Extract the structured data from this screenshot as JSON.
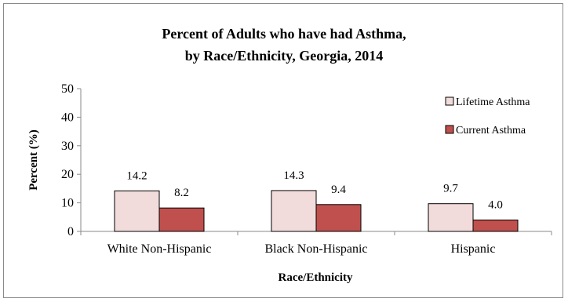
{
  "chart_data": {
    "type": "bar",
    "title_line1": "Percent of Adults who have had Asthma,",
    "title_line2": "by Race/Ethnicity, Georgia, 2014",
    "xlabel": "Race/Ethnicity",
    "ylabel": "Percent (%)",
    "ylim": [
      0,
      50
    ],
    "yticks": [
      0,
      10,
      20,
      30,
      40,
      50
    ],
    "categories": [
      "White Non-Hispanic",
      "Black Non-Hispanic",
      "Hispanic"
    ],
    "series": [
      {
        "name": "Lifetime Asthma",
        "values": [
          14.2,
          14.3,
          9.7
        ],
        "labels": [
          "14.2",
          "14.3",
          "9.7"
        ],
        "color": "#f2dcdb"
      },
      {
        "name": "Current Asthma",
        "values": [
          8.2,
          9.4,
          4.0
        ],
        "labels": [
          "8.2",
          "9.4",
          "4.0"
        ],
        "color": "#c0504d"
      }
    ],
    "legend_position": "top-right",
    "grid": false
  }
}
